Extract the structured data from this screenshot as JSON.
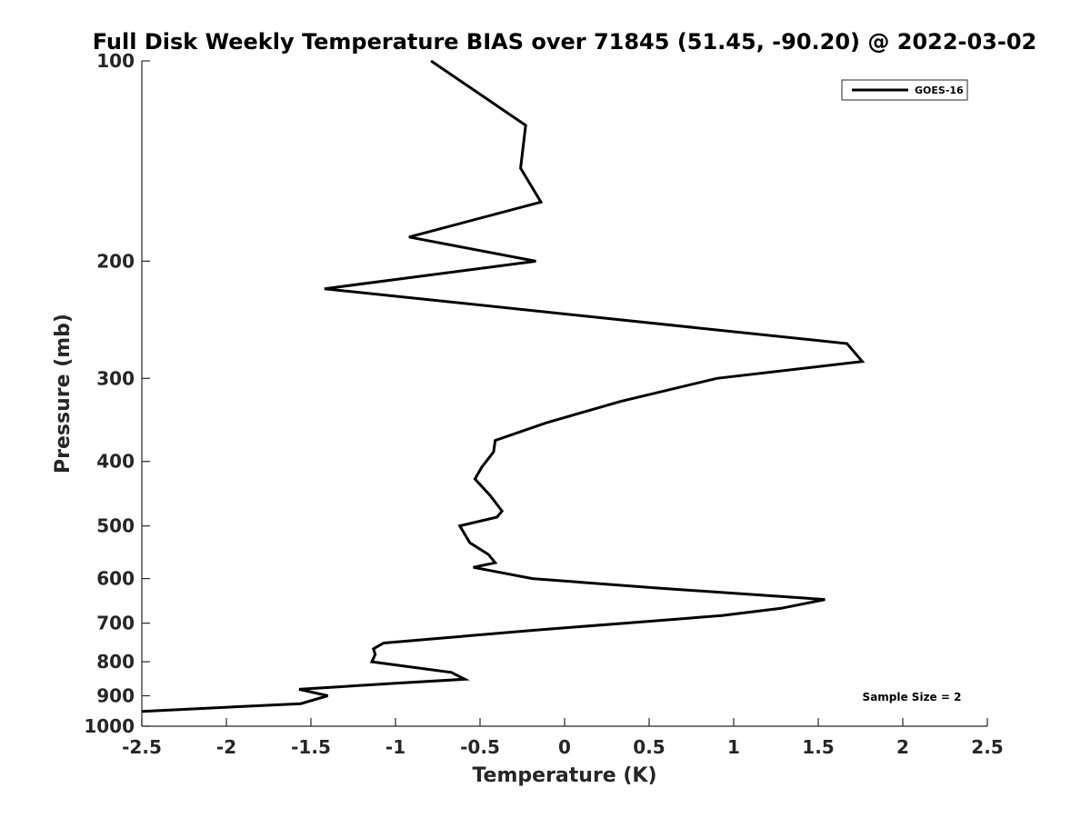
{
  "chart_data": {
    "type": "line",
    "title": "Full Disk Weekly Temperature BIAS over 71845 (51.45, -90.20) @ 2022-03-02",
    "xlabel": "Temperature (K)",
    "ylabel": "Pressure (mb)",
    "xlim": [
      -2.5,
      2.5
    ],
    "ylim": [
      100,
      1000
    ],
    "y_scale": "log",
    "y_reversed": true,
    "x_ticks": [
      "-2.5",
      "-2",
      "-1.5",
      "-1",
      "-0.5",
      "0",
      "0.5",
      "1",
      "1.5",
      "2",
      "2.5"
    ],
    "x_tick_values": [
      -2.5,
      -2,
      -1.5,
      -1,
      -0.5,
      0,
      0.5,
      1,
      1.5,
      2,
      2.5
    ],
    "y_ticks": [
      "100",
      "200",
      "300",
      "400",
      "500",
      "600",
      "700",
      "800",
      "900",
      "1000"
    ],
    "y_tick_values": [
      100,
      200,
      300,
      400,
      500,
      600,
      700,
      800,
      900,
      1000
    ],
    "grid": false,
    "legend_position": "top-right",
    "annotation": "Sample Size = 2",
    "series": [
      {
        "name": "GOES-16",
        "color": "#000000",
        "points": [
          {
            "x": -0.79,
            "y": 100
          },
          {
            "x": -0.23,
            "y": 125
          },
          {
            "x": -0.26,
            "y": 145
          },
          {
            "x": -0.14,
            "y": 163
          },
          {
            "x": -0.92,
            "y": 184
          },
          {
            "x": -0.17,
            "y": 200
          },
          {
            "x": -1.42,
            "y": 220
          },
          {
            "x": 1.67,
            "y": 266
          },
          {
            "x": 1.76,
            "y": 283
          },
          {
            "x": 0.9,
            "y": 300
          },
          {
            "x": 0.33,
            "y": 325
          },
          {
            "x": -0.11,
            "y": 350
          },
          {
            "x": -0.41,
            "y": 372
          },
          {
            "x": -0.42,
            "y": 387
          },
          {
            "x": -0.49,
            "y": 408
          },
          {
            "x": -0.53,
            "y": 425
          },
          {
            "x": -0.44,
            "y": 450
          },
          {
            "x": -0.37,
            "y": 475
          },
          {
            "x": -0.4,
            "y": 485
          },
          {
            "x": -0.62,
            "y": 500
          },
          {
            "x": -0.56,
            "y": 530
          },
          {
            "x": -0.45,
            "y": 552
          },
          {
            "x": -0.41,
            "y": 568
          },
          {
            "x": -0.54,
            "y": 577
          },
          {
            "x": -0.19,
            "y": 600
          },
          {
            "x": 0.55,
            "y": 620
          },
          {
            "x": 1.54,
            "y": 645
          },
          {
            "x": 1.28,
            "y": 665
          },
          {
            "x": 0.93,
            "y": 682
          },
          {
            "x": 0.36,
            "y": 700
          },
          {
            "x": -0.17,
            "y": 717
          },
          {
            "x": -1.07,
            "y": 750
          },
          {
            "x": -1.13,
            "y": 765
          },
          {
            "x": -1.12,
            "y": 780
          },
          {
            "x": -1.14,
            "y": 800
          },
          {
            "x": -0.67,
            "y": 830
          },
          {
            "x": -0.59,
            "y": 850
          },
          {
            "x": -1.0,
            "y": 862
          },
          {
            "x": -1.57,
            "y": 880
          },
          {
            "x": -1.4,
            "y": 900
          },
          {
            "x": -1.56,
            "y": 925
          },
          {
            "x": -2.5,
            "y": 950
          }
        ]
      }
    ]
  }
}
